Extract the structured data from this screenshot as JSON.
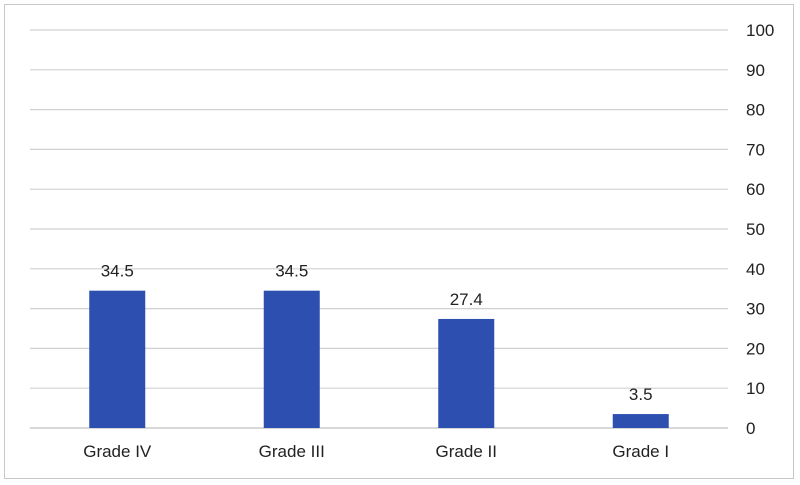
{
  "chart_data": {
    "type": "bar",
    "categories": [
      "Grade IV",
      "Grade III",
      "Grade II",
      "Grade I"
    ],
    "values": [
      34.5,
      34.5,
      27.4,
      3.5
    ],
    "data_labels": [
      "34.5",
      "34.5",
      "27.4",
      "3.5"
    ],
    "ylim": [
      0,
      100
    ],
    "yticks": [
      0,
      10,
      20,
      30,
      40,
      50,
      60,
      70,
      80,
      90,
      100
    ],
    "y_axis_side": "right",
    "grid": true,
    "bar_color": "#2c4fb0",
    "title": "",
    "xlabel": "",
    "ylabel": ""
  }
}
